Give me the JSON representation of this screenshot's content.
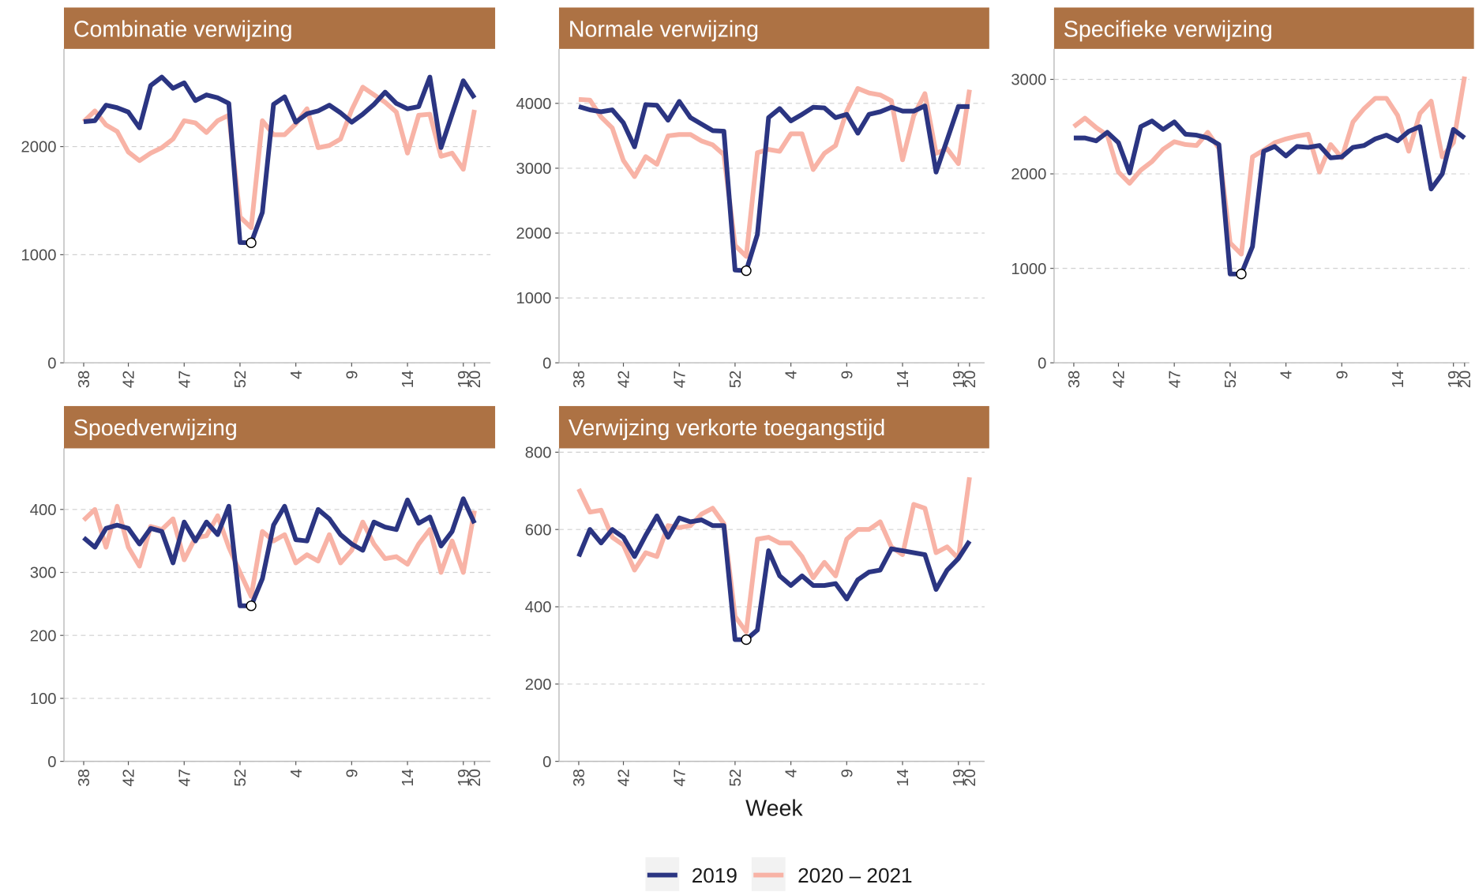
{
  "x_label": "Week",
  "legend_position": "bottom",
  "chart_data": [
    {
      "type": "line",
      "title": "Combinatie verwijzing",
      "categories": [
        "38",
        null,
        null,
        null,
        "42",
        null,
        null,
        null,
        null,
        "47",
        null,
        null,
        null,
        null,
        "52",
        null,
        null,
        null,
        null,
        "4",
        null,
        null,
        null,
        null,
        "9",
        null,
        null,
        null,
        null,
        "14",
        null,
        null,
        null,
        null,
        "19",
        "20"
      ],
      "ylim": [
        0,
        2904
      ],
      "yticks": [
        0,
        1000,
        2000
      ],
      "grid": true,
      "highlight_index": 15,
      "series": [
        {
          "name": "2019",
          "color": "#2b3582",
          "values": [
            2230,
            2240,
            2383,
            2360,
            2320,
            2174,
            2565,
            2643,
            2540,
            2590,
            2426,
            2478,
            2452,
            2400,
            1113,
            1110,
            1391,
            2391,
            2461,
            2226,
            2304,
            2330,
            2383,
            2313,
            2226,
            2300,
            2390,
            2504,
            2400,
            2350,
            2370,
            2643,
            1991,
            2300,
            2609,
            2450
          ]
        },
        {
          "name": "2020 – 2021",
          "color": "#f8b3a6",
          "values": [
            2230,
            2330,
            2200,
            2140,
            1950,
            1870,
            1940,
            1990,
            2070,
            2240,
            2220,
            2130,
            2240,
            2290,
            1350,
            1250,
            2240,
            2110,
            2110,
            2210,
            2350,
            1990,
            2010,
            2070,
            2340,
            2550,
            2480,
            2410,
            2320,
            1940,
            2290,
            2300,
            1910,
            1940,
            1790,
            2340
          ]
        }
      ]
    },
    {
      "type": "line",
      "title": "Normale verwijzing",
      "categories": [
        "38",
        null,
        null,
        null,
        "42",
        null,
        null,
        null,
        null,
        "47",
        null,
        null,
        null,
        null,
        "52",
        null,
        null,
        null,
        null,
        "4",
        null,
        null,
        null,
        null,
        "9",
        null,
        null,
        null,
        null,
        "14",
        null,
        null,
        null,
        null,
        "19",
        "20"
      ],
      "ylim": [
        0,
        4840
      ],
      "yticks": [
        0,
        1000,
        2000,
        3000,
        4000
      ],
      "grid": true,
      "highlight_index": 15,
      "series": [
        {
          "name": "2019",
          "color": "#2b3582",
          "values": [
            3950,
            3900,
            3870,
            3900,
            3700,
            3330,
            3980,
            3970,
            3740,
            4030,
            3780,
            3680,
            3580,
            3570,
            1430,
            1420,
            1980,
            3780,
            3920,
            3730,
            3830,
            3940,
            3930,
            3780,
            3830,
            3540,
            3830,
            3870,
            3940,
            3880,
            3880,
            3960,
            2940,
            3440,
            3950,
            3950
          ]
        },
        {
          "name": "2020 – 2021",
          "color": "#f8b3a6",
          "values": [
            4060,
            4050,
            3790,
            3620,
            3120,
            2870,
            3180,
            3060,
            3500,
            3520,
            3520,
            3420,
            3360,
            3210,
            1810,
            1640,
            3240,
            3290,
            3260,
            3530,
            3530,
            2980,
            3230,
            3350,
            3880,
            4230,
            4160,
            4130,
            4040,
            3130,
            3810,
            4150,
            3230,
            3300,
            3070,
            4210
          ]
        }
      ]
    },
    {
      "type": "line",
      "title": "Specifieke verwijzing",
      "categories": [
        "38",
        null,
        null,
        null,
        "42",
        null,
        null,
        null,
        null,
        "47",
        null,
        null,
        null,
        null,
        "52",
        null,
        null,
        null,
        null,
        "4",
        null,
        null,
        null,
        null,
        "9",
        null,
        null,
        null,
        null,
        "14",
        null,
        null,
        null,
        null,
        "19",
        "20"
      ],
      "ylim": [
        0,
        3323
      ],
      "yticks": [
        0,
        1000,
        2000,
        3000
      ],
      "grid": true,
      "highlight_index": 15,
      "series": [
        {
          "name": "2019",
          "color": "#2b3582",
          "values": [
            2380,
            2380,
            2350,
            2440,
            2330,
            2010,
            2500,
            2560,
            2470,
            2550,
            2420,
            2410,
            2380,
            2310,
            940,
            940,
            1230,
            2240,
            2290,
            2190,
            2290,
            2280,
            2300,
            2170,
            2180,
            2280,
            2300,
            2370,
            2410,
            2350,
            2450,
            2500,
            1840,
            2000,
            2470,
            2380
          ]
        },
        {
          "name": "2020 – 2021",
          "color": "#f8b3a6",
          "values": [
            2500,
            2590,
            2490,
            2410,
            2020,
            1900,
            2040,
            2130,
            2260,
            2340,
            2310,
            2300,
            2440,
            2270,
            1270,
            1150,
            2180,
            2250,
            2330,
            2370,
            2400,
            2420,
            2020,
            2310,
            2170,
            2550,
            2690,
            2800,
            2800,
            2620,
            2240,
            2640,
            2770,
            2180,
            2330,
            3030
          ]
        }
      ]
    },
    {
      "type": "line",
      "title": "Spoedverwijzing",
      "categories": [
        "38",
        null,
        null,
        null,
        "42",
        null,
        null,
        null,
        null,
        "47",
        null,
        null,
        null,
        null,
        "52",
        null,
        null,
        null,
        null,
        "4",
        null,
        null,
        null,
        null,
        "9",
        null,
        null,
        null,
        null,
        "14",
        null,
        null,
        null,
        null,
        "19",
        "20"
      ],
      "ylim": [
        0,
        497
      ],
      "yticks": [
        0,
        100,
        200,
        300,
        400
      ],
      "grid": true,
      "highlight_index": 15,
      "series": [
        {
          "name": "2019",
          "color": "#2b3582",
          "values": [
            355,
            340,
            370,
            375,
            370,
            345,
            370,
            365,
            315,
            380,
            350,
            380,
            360,
            405,
            247,
            247,
            290,
            375,
            405,
            352,
            350,
            400,
            385,
            360,
            345,
            335,
            380,
            372,
            368,
            415,
            378,
            388,
            342,
            365,
            417,
            378
          ]
        },
        {
          "name": "2020 – 2021",
          "color": "#f8b3a6",
          "values": [
            383,
            400,
            340,
            405,
            340,
            310,
            373,
            368,
            385,
            320,
            355,
            358,
            390,
            340,
            300,
            262,
            365,
            350,
            360,
            315,
            328,
            318,
            360,
            315,
            335,
            380,
            345,
            322,
            325,
            313,
            345,
            368,
            300,
            350,
            300,
            398
          ]
        }
      ]
    },
    {
      "type": "line",
      "title": "Verwijzing verkorte toegangstijd",
      "categories": [
        "38",
        null,
        null,
        null,
        "42",
        null,
        null,
        null,
        null,
        "47",
        null,
        null,
        null,
        null,
        "52",
        null,
        null,
        null,
        null,
        "4",
        null,
        null,
        null,
        null,
        "9",
        null,
        null,
        null,
        null,
        "14",
        null,
        null,
        null,
        null,
        "19",
        "20"
      ],
      "ylim": [
        0,
        810
      ],
      "yticks": [
        0,
        200,
        400,
        600,
        800
      ],
      "grid": true,
      "highlight_index": 15,
      "series": [
        {
          "name": "2019",
          "color": "#2b3582",
          "values": [
            530,
            600,
            565,
            600,
            580,
            530,
            585,
            635,
            580,
            630,
            620,
            625,
            610,
            610,
            315,
            315,
            340,
            545,
            480,
            455,
            480,
            455,
            455,
            460,
            420,
            470,
            490,
            495,
            550,
            545,
            540,
            535,
            445,
            495,
            525,
            570
          ]
        },
        {
          "name": "2020 – 2021",
          "color": "#f8b3a6",
          "values": [
            705,
            645,
            650,
            580,
            560,
            495,
            540,
            530,
            610,
            605,
            610,
            640,
            655,
            615,
            375,
            335,
            575,
            580,
            565,
            565,
            530,
            475,
            515,
            480,
            575,
            600,
            600,
            620,
            555,
            535,
            665,
            655,
            540,
            555,
            525,
            735
          ]
        }
      ]
    }
  ]
}
